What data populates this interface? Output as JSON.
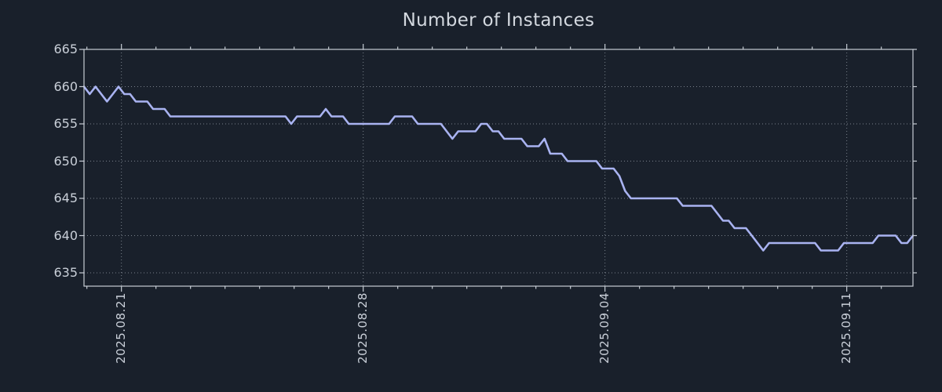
{
  "title": "Number of Instances",
  "colors": {
    "background": "#19202b",
    "line": "#a9b3f1",
    "grid": "#aeb5bf",
    "spine": "#c6ccd4",
    "tick_label": "#c9cfd8",
    "title": "#d3d8df"
  },
  "chart_data": {
    "type": "line",
    "title": "Number of Instances",
    "xlabel": "",
    "ylabel": "",
    "legend": null,
    "grid": "dotted, major ticks only",
    "ylim": [
      633.25,
      665
    ],
    "y_ticks": [
      "665",
      "660",
      "655",
      "650",
      "645",
      "640",
      "635"
    ],
    "y_tick_values": [
      665,
      660,
      655,
      650,
      645,
      640,
      635
    ],
    "x_tick_labels": [
      "2025.08.21",
      "2025.08.28",
      "2025.09.04",
      "2025.09.11"
    ],
    "x_major_tick_positions_idx": [
      6.5,
      48.5,
      90.5,
      132.5
    ],
    "x_minor_ticks_idx": {
      "start": 0.5,
      "step": 6,
      "count": 24
    },
    "points_per_day": 6,
    "num_points": 145,
    "values": [
      660,
      659,
      660,
      659,
      658,
      659,
      660,
      659,
      659,
      658,
      658,
      658,
      657,
      657,
      657,
      656,
      656,
      656,
      656,
      656,
      656,
      656,
      656,
      656,
      656,
      656,
      656,
      656,
      656,
      656,
      656,
      656,
      656,
      656,
      656,
      656,
      655,
      656,
      656,
      656,
      656,
      656,
      657,
      656,
      656,
      656,
      655,
      655,
      655,
      655,
      655,
      655,
      655,
      655,
      656,
      656,
      656,
      656,
      655,
      655,
      655,
      655,
      655,
      654,
      653,
      654,
      654,
      654,
      654,
      655,
      655,
      654,
      654,
      653,
      653,
      653,
      653,
      652,
      652,
      652,
      653,
      651,
      651,
      651,
      650,
      650,
      650,
      650,
      650,
      650,
      649,
      649,
      649,
      648,
      646,
      645,
      645,
      645,
      645,
      645,
      645,
      645,
      645,
      645,
      644,
      644,
      644,
      644,
      644,
      644,
      643,
      642,
      642,
      641,
      641,
      641,
      640,
      639,
      638,
      639,
      639,
      639,
      639,
      639,
      639,
      639,
      639,
      639,
      638,
      638,
      638,
      638,
      639,
      639,
      639,
      639,
      639,
      639,
      640,
      640,
      640,
      640,
      639,
      639,
      640
    ]
  }
}
